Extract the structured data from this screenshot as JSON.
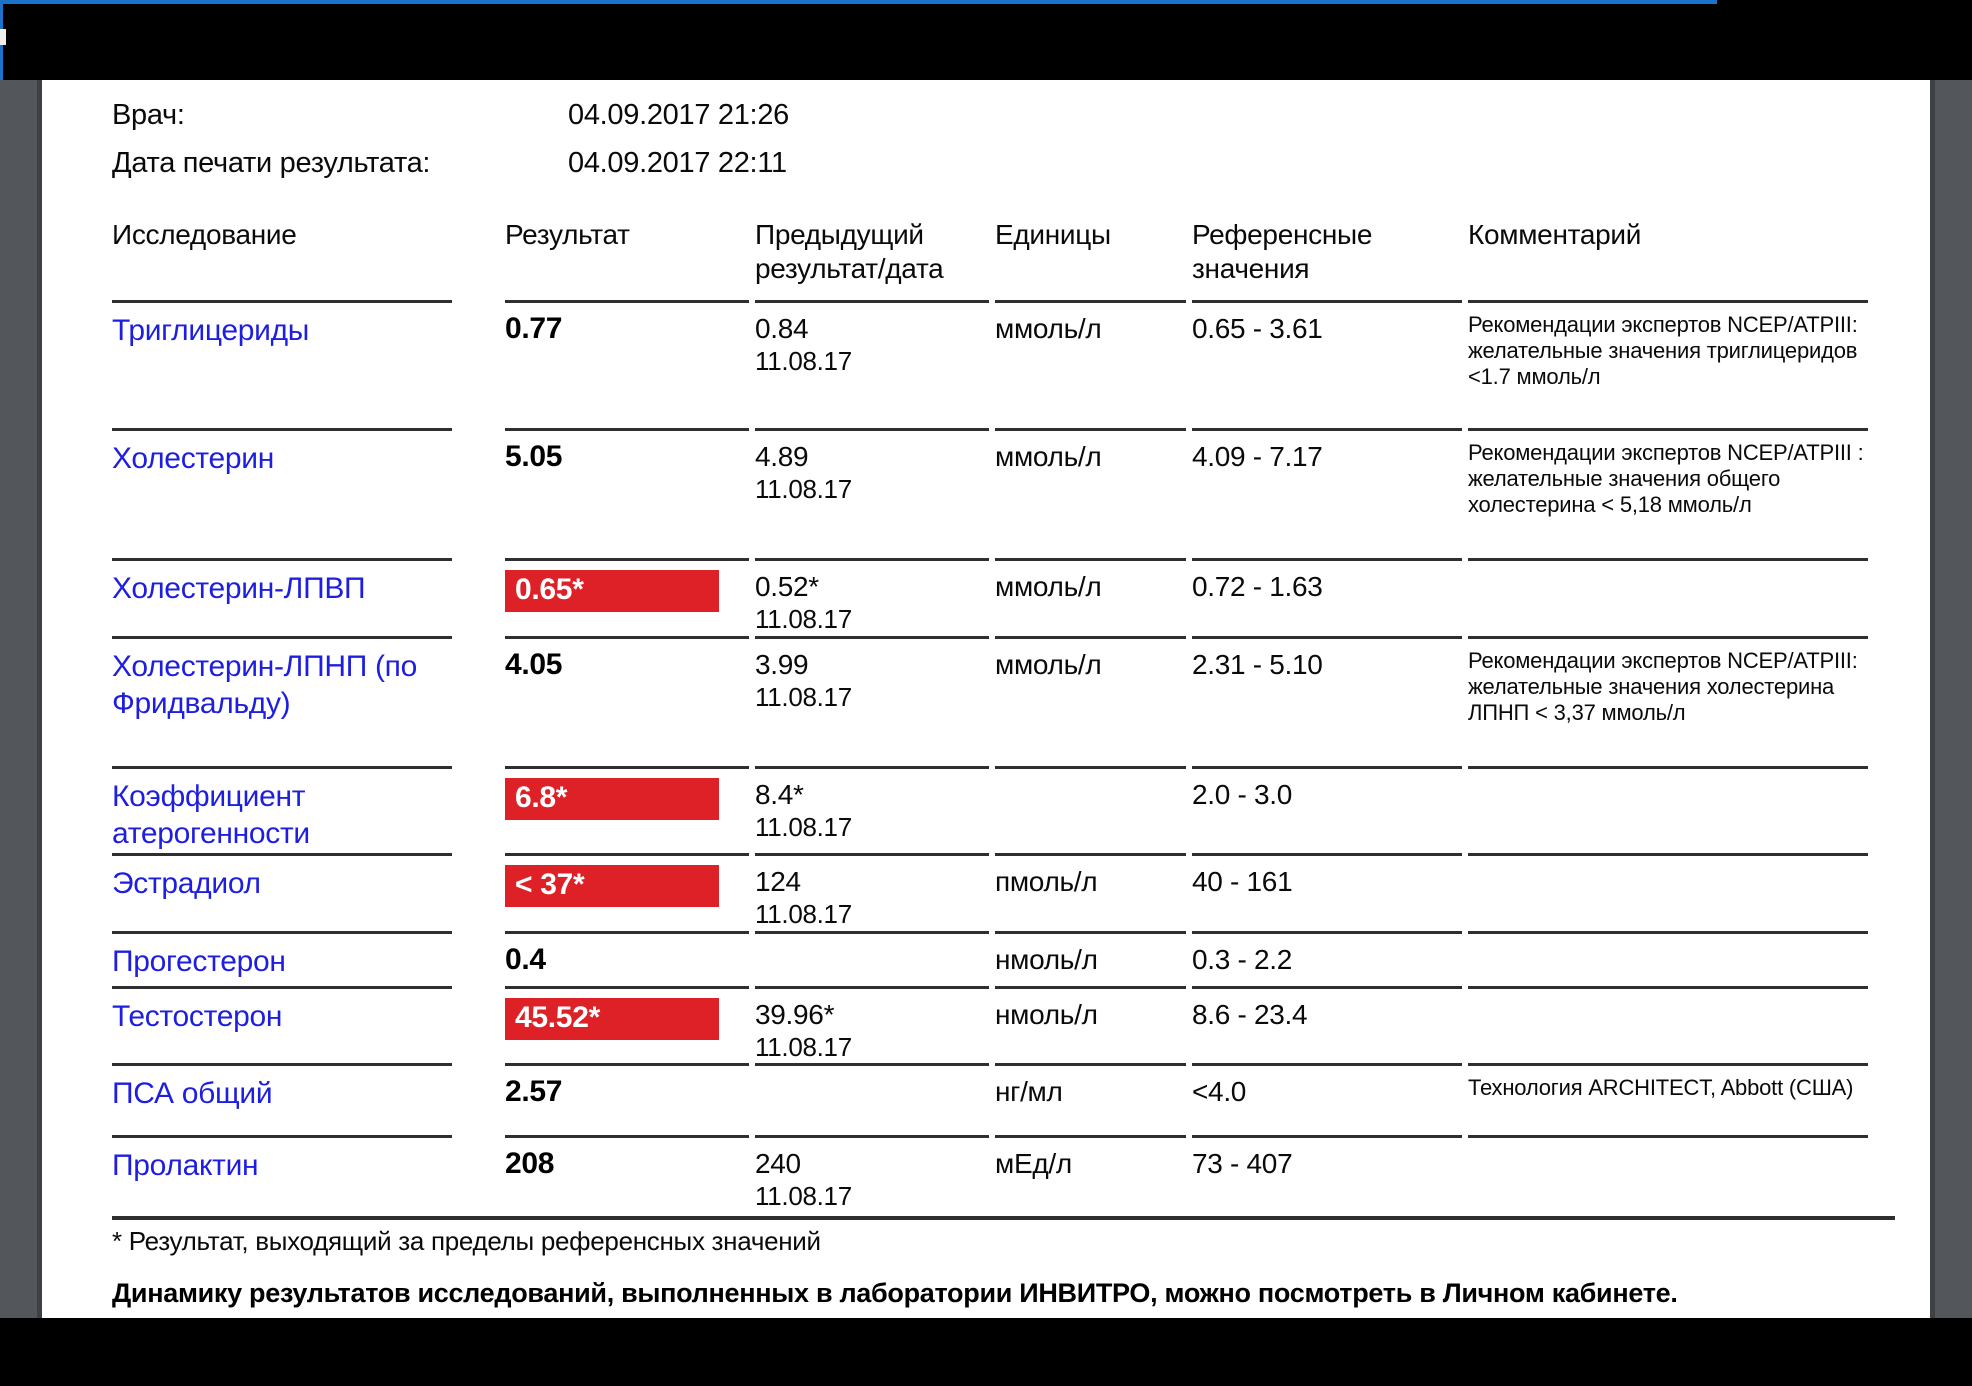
{
  "info": [
    {
      "label": "Врач:",
      "value": "04.09.2017 21:26"
    },
    {
      "label": "Дата печати результата:",
      "value": "04.09.2017 22:11"
    }
  ],
  "table": {
    "columns": [
      "Исследование",
      "Результат",
      "Предыдущий результат/дата",
      "Единицы",
      "Референсные значения",
      "Комментарий"
    ],
    "rows": [
      {
        "name": "Триглицериды",
        "result": "0.77",
        "flagged": false,
        "prev": "0.84",
        "prev_date": "11.08.17",
        "units": "ммоль/л",
        "ref": "0.65 - 3.61",
        "comment": "Рекомендации экспертов NCEP/ATPIII: желательные значения триглицеридов <1.7 ммоль/л"
      },
      {
        "name": "Холестерин",
        "result": "5.05",
        "flagged": false,
        "prev": "4.89",
        "prev_date": "11.08.17",
        "units": "ммоль/л",
        "ref": "4.09 - 7.17",
        "comment": "Рекомендации экспертов NCEP/ATPIII : желательные значения общего холестерина < 5,18 ммоль/л"
      },
      {
        "name": "Холестерин-ЛПВП",
        "result": "0.65*",
        "flagged": true,
        "prev": "0.52*",
        "prev_date": "11.08.17",
        "units": "ммоль/л",
        "ref": "0.72 - 1.63",
        "comment": ""
      },
      {
        "name": "Холестерин-ЛПНП (по Фридвальду)",
        "result": "4.05",
        "flagged": false,
        "prev": "3.99",
        "prev_date": "11.08.17",
        "units": "ммоль/л",
        "ref": "2.31 - 5.10",
        "comment": "Рекомендации экспертов NCEP/ATPIII: желательные значения холестерина ЛПНП < 3,37 ммоль/л"
      },
      {
        "name": "Коэффициент атерогенности",
        "result": "6.8*",
        "flagged": true,
        "prev": "8.4*",
        "prev_date": "11.08.17",
        "units": "",
        "ref": "2.0 - 3.0",
        "comment": ""
      },
      {
        "name": "Эстрадиол",
        "result": "< 37*",
        "flagged": true,
        "prev": "124",
        "prev_date": "11.08.17",
        "units": "пмоль/л",
        "ref": "40 - 161",
        "comment": ""
      },
      {
        "name": "Прогестерон",
        "result": "0.4",
        "flagged": false,
        "prev": "",
        "prev_date": "",
        "units": "нмоль/л",
        "ref": "0.3 - 2.2",
        "comment": ""
      },
      {
        "name": "Тестостерон",
        "result": "45.52*",
        "flagged": true,
        "prev": "39.96*",
        "prev_date": "11.08.17",
        "units": "нмоль/л",
        "ref": "8.6 - 23.4",
        "comment": ""
      },
      {
        "name": "ПСА общий",
        "result": "2.57",
        "flagged": false,
        "prev": "",
        "prev_date": "",
        "units": "нг/мл",
        "ref": "<4.0",
        "comment": "Технология ARCHITECT, Abbott (США)"
      },
      {
        "name": "Пролактин",
        "result": "208",
        "flagged": false,
        "prev": "240",
        "prev_date": "11.08.17",
        "units": "мЕд/л",
        "ref": "73 - 407",
        "comment": ""
      }
    ]
  },
  "footnote": "* Результат, выходящий за пределы референсных значений",
  "footer": "Динамику результатов исследований, выполненных в лаборатории ИНВИТРО, можно посмотреть в Личном кабинете.",
  "colors": {
    "link_blue": "#1e1ee0",
    "flag_red": "#dd2127",
    "accent_blue": "#1a73c8"
  }
}
